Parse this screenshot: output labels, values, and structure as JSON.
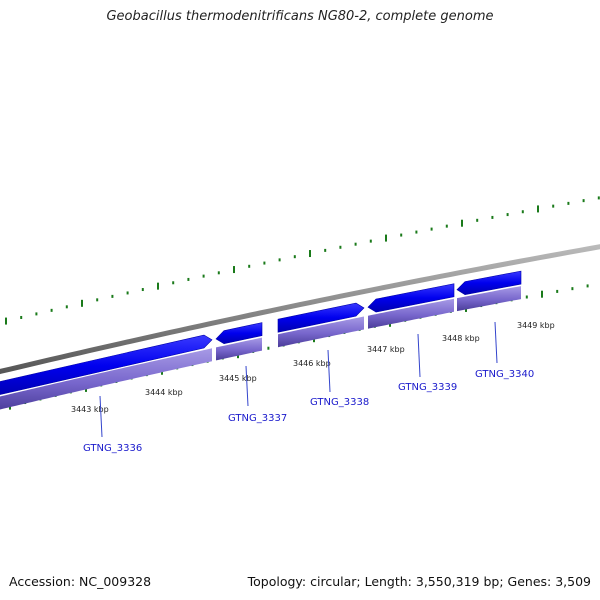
{
  "title": "Geobacillus thermodenitrificans NG80-2, complete genome",
  "footer": {
    "accession": "Accession: NC_009328",
    "summary": "Topology: circular; Length: 3,550,319 bp; Genes: 3,509"
  },
  "colors": {
    "gene_forward": "#0000ee",
    "gene_shadow": "#7766cc",
    "backbone": "#888888",
    "ticks": "#1a7a1a",
    "leader": "#3344cc",
    "gene_label": "#1a1acc"
  },
  "ticks": [
    {
      "label": "3443 kbp"
    },
    {
      "label": "3444 kbp"
    },
    {
      "label": "3445 kbp"
    },
    {
      "label": "3446 kbp"
    },
    {
      "label": "3447 kbp"
    },
    {
      "label": "3448 kbp"
    },
    {
      "label": "3449 kbp"
    }
  ],
  "genes": [
    {
      "label": "GTNG_3336",
      "strand": "+"
    },
    {
      "label": "GTNG_3337",
      "strand": "-"
    },
    {
      "label": "GTNG_3338",
      "strand": "+"
    },
    {
      "label": "GTNG_3339",
      "strand": "-"
    },
    {
      "label": "GTNG_3340",
      "strand": "-"
    }
  ]
}
